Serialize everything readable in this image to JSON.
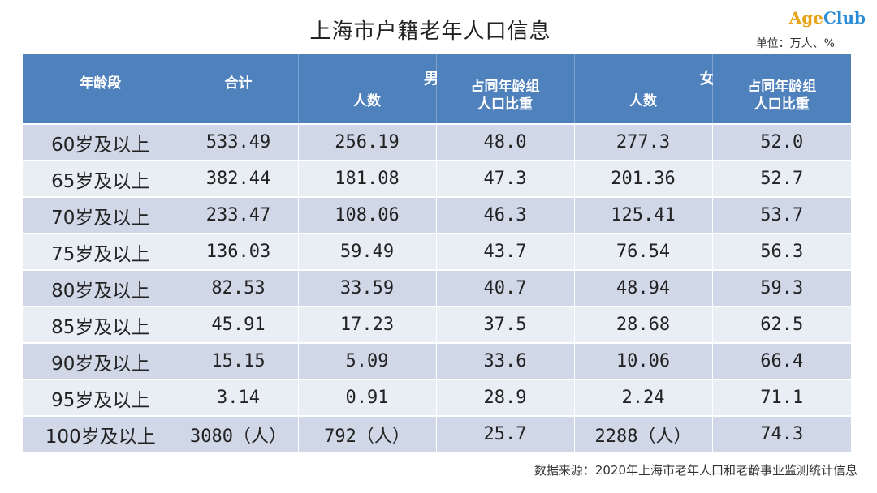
{
  "title": "上海市户籍老年人口信息",
  "logo": {
    "part1": "Age",
    "part2": "Club"
  },
  "unit": "单位：万人、%",
  "headers": {
    "age": "年龄段",
    "total": "合计",
    "male": "男",
    "female": "女",
    "count": "人数",
    "share_line1": "占同年龄组",
    "share_line2": "人口比重"
  },
  "rows": [
    {
      "age": "60岁及以上",
      "total": "533.49",
      "male_count": "256.19",
      "male_share": "48.0",
      "female_count": "277.3",
      "female_share": "52.0"
    },
    {
      "age": "65岁及以上",
      "total": "382.44",
      "male_count": "181.08",
      "male_share": "47.3",
      "female_count": "201.36",
      "female_share": "52.7"
    },
    {
      "age": "70岁及以上",
      "total": "233.47",
      "male_count": "108.06",
      "male_share": "46.3",
      "female_count": "125.41",
      "female_share": "53.7"
    },
    {
      "age": "75岁及以上",
      "total": "136.03",
      "male_count": "59.49",
      "male_share": "43.7",
      "female_count": "76.54",
      "female_share": "56.3"
    },
    {
      "age": "80岁及以上",
      "total": "82.53",
      "male_count": "33.59",
      "male_share": "40.7",
      "female_count": "48.94",
      "female_share": "59.3"
    },
    {
      "age": "85岁及以上",
      "total": "45.91",
      "male_count": "17.23",
      "male_share": "37.5",
      "female_count": "28.68",
      "female_share": "62.5"
    },
    {
      "age": "90岁及以上",
      "total": "15.15",
      "male_count": "5.09",
      "male_share": "33.6",
      "female_count": "10.06",
      "female_share": "66.4"
    },
    {
      "age": "95岁及以上",
      "total": "3.14",
      "male_count": "0.91",
      "male_share": "28.9",
      "female_count": "2.24",
      "female_share": "71.1"
    },
    {
      "age": "100岁及以上",
      "total": "3080（人）",
      "male_count": "792（人）",
      "male_share": "25.7",
      "female_count": "2288（人）",
      "female_share": "74.3"
    }
  ],
  "source": "数据来源：2020年上海市老年人口和老龄事业监测统计信息"
}
